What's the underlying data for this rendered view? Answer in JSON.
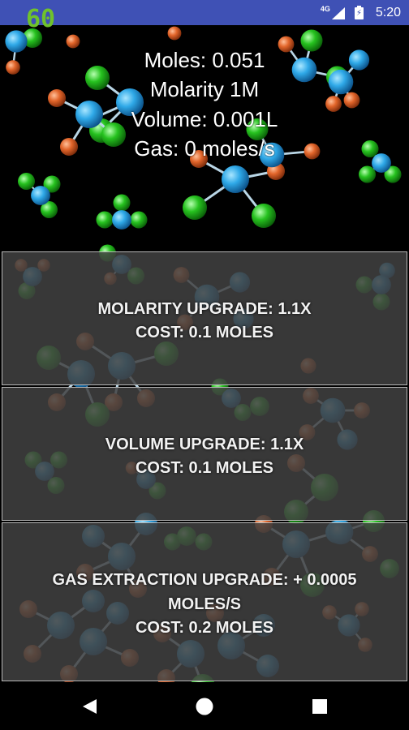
{
  "status_bar": {
    "fps_counter": "60",
    "network_label": "4G",
    "time": "5:20",
    "signal_icon": "cell-signal-icon",
    "battery_icon": "battery-charging-icon"
  },
  "stats": {
    "moles": "Moles: 0.051",
    "molarity": "Molarity 1M",
    "volume": "Volume: 0.001L",
    "gas": "Gas: 0 moles/s"
  },
  "upgrades": [
    {
      "title": "MOLARITY UPGRADE: 1.1X",
      "cost": "COST: 0.1 MOLES"
    },
    {
      "title": "VOLUME UPGRADE: 1.1X",
      "cost": "COST: 0.1 MOLES"
    },
    {
      "title": "GAS EXTRACTION UPGRADE: + 0.0005",
      "title_line2": "MOLES/S",
      "cost": "COST: 0.2 MOLES"
    }
  ],
  "nav_bar": {
    "back_icon": "back-triangle-icon",
    "home_icon": "home-circle-icon",
    "recents_icon": "recents-square-icon"
  },
  "colors": {
    "status_bar": "#3f51b5",
    "fps_text": "#6fc22c",
    "atom_blue": "#29a8e6",
    "atom_green": "#27c423",
    "atom_orange": "#e0652a",
    "upgrade_panel": "#414141",
    "upgrade_border": "#b8b8b8"
  }
}
